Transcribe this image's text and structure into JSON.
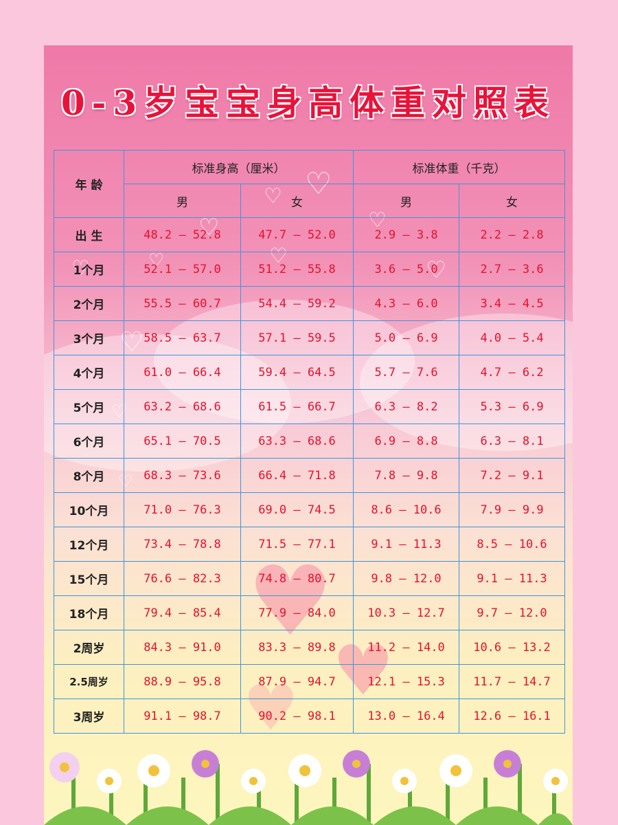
{
  "title": "0-3岁宝宝身高体重对照表",
  "header": {
    "age": "年 龄",
    "height_group": "标准身高（厘米）",
    "weight_group": "标准体重（千克）",
    "male": "男",
    "female": "女"
  },
  "rows": [
    {
      "age": "出 生",
      "height_male": "48.2 — 52.8",
      "height_female": "47.7 — 52.0",
      "weight_male": "2.9 — 3.8",
      "weight_female": "2.2 — 2.8"
    },
    {
      "age": "1个月",
      "height_male": "52.1 — 57.0",
      "height_female": "51.2 — 55.8",
      "weight_male": "3.6 — 5.0",
      "weight_female": "2.7 — 3.6"
    },
    {
      "age": "2个月",
      "height_male": "55.5 — 60.7",
      "height_female": "54.4 — 59.2",
      "weight_male": "4.3 — 6.0",
      "weight_female": "3.4 — 4.5"
    },
    {
      "age": "3个月",
      "height_male": "58.5 — 63.7",
      "height_female": "57.1 — 59.5",
      "weight_male": "5.0 — 6.9",
      "weight_female": "4.0 — 5.4"
    },
    {
      "age": "4个月",
      "height_male": "61.0 — 66.4",
      "height_female": "59.4 — 64.5",
      "weight_male": "5.7 — 7.6",
      "weight_female": "4.7 — 6.2"
    },
    {
      "age": "5个月",
      "height_male": "63.2 — 68.6",
      "height_female": "61.5 — 66.7",
      "weight_male": "6.3 — 8.2",
      "weight_female": "5.3 — 6.9"
    },
    {
      "age": "6个月",
      "height_male": "65.1 — 70.5",
      "height_female": "63.3 — 68.6",
      "weight_male": "6.9 — 8.8",
      "weight_female": "6.3 — 8.1"
    },
    {
      "age": "8个月",
      "height_male": "68.3 — 73.6",
      "height_female": "66.4 — 71.8",
      "weight_male": "7.8 — 9.8",
      "weight_female": "7.2 — 9.1"
    },
    {
      "age": "10个月",
      "height_male": "71.0 — 76.3",
      "height_female": "69.0 — 74.5",
      "weight_male": "8.6 — 10.6",
      "weight_female": "7.9 — 9.9"
    },
    {
      "age": "12个月",
      "height_male": "73.4 — 78.8",
      "height_female": "71.5 — 77.1",
      "weight_male": "9.1 — 11.3",
      "weight_female": "8.5 — 10.6"
    },
    {
      "age": "15个月",
      "height_male": "76.6 — 82.3",
      "height_female": "74.8 — 80.7",
      "weight_male": "9.8 — 12.0",
      "weight_female": "9.1 — 11.3"
    },
    {
      "age": "18个月",
      "height_male": "79.4 — 85.4",
      "height_female": "77.9 — 84.0",
      "weight_male": "10.3 — 12.7",
      "weight_female": "9.7 — 12.0"
    },
    {
      "age": "2周岁",
      "height_male": "84.3 — 91.0",
      "height_female": "83.3 — 89.8",
      "weight_male": "11.2 — 14.0",
      "weight_female": "10.6 — 13.2"
    },
    {
      "age": "2.5周岁",
      "height_male": "88.9 — 95.8",
      "height_female": "87.9 — 94.7",
      "weight_male": "12.1 — 15.3",
      "weight_female": "11.7 — 14.7"
    },
    {
      "age": "3周岁",
      "height_male": "91.1 — 98.7",
      "height_female": "90.2 — 98.1",
      "weight_male": "13.0 — 16.4",
      "weight_female": "12.6 — 16.1"
    }
  ],
  "colors": {
    "title": "#e9123a",
    "grid": "#3f94dc",
    "value_text": "#e8102c",
    "background": "#fbc7dc"
  }
}
